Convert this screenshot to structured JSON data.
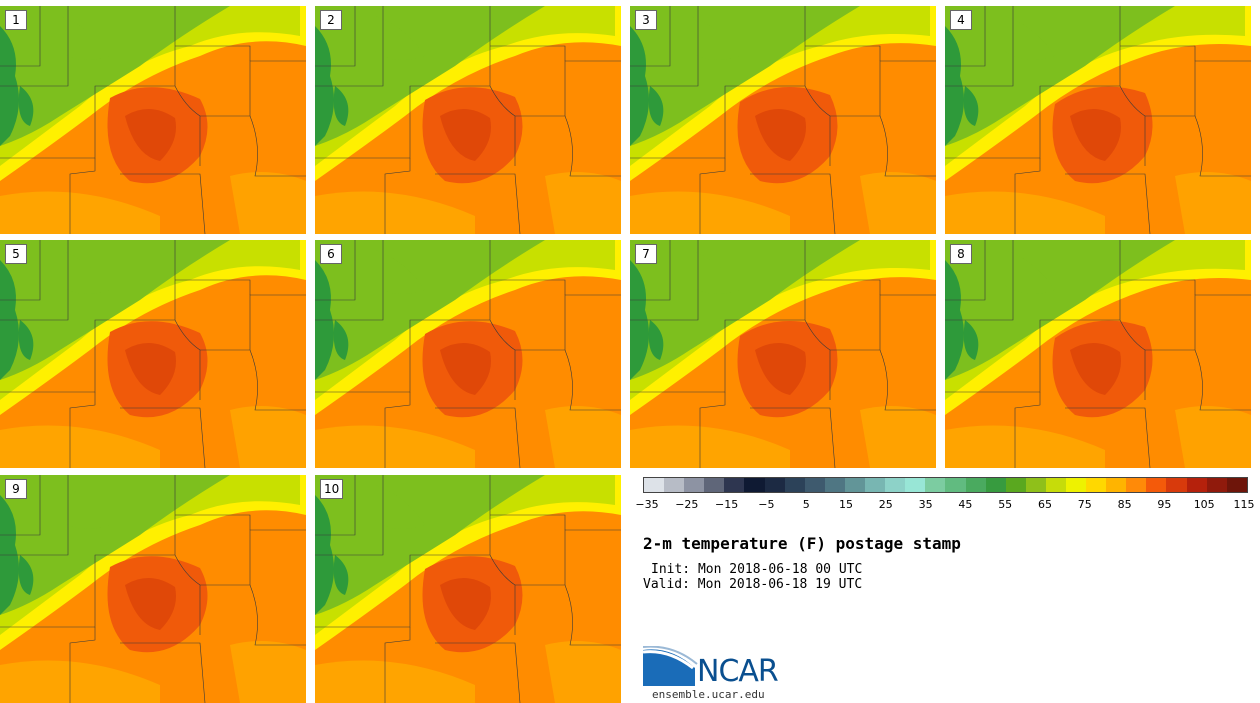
{
  "panels": [
    {
      "label": "1"
    },
    {
      "label": "2"
    },
    {
      "label": "3"
    },
    {
      "label": "4"
    },
    {
      "label": "5"
    },
    {
      "label": "6"
    },
    {
      "label": "7"
    },
    {
      "label": "8"
    },
    {
      "label": "9"
    },
    {
      "label": "10"
    }
  ],
  "colorbar": {
    "colors": [
      "#dde2e8",
      "#b7bcc6",
      "#8d93a3",
      "#5f6679",
      "#2e3650",
      "#0f1a33",
      "#1c2a43",
      "#2c4259",
      "#3e5a6e",
      "#4f7683",
      "#629598",
      "#78b6b2",
      "#8dd2c8",
      "#98e6d6",
      "#7ccca1",
      "#61bb80",
      "#4aaa5f",
      "#379b3f",
      "#5aa81f",
      "#8fc01a",
      "#c6dc0a",
      "#eef200",
      "#ffd800",
      "#ffb400",
      "#ff8a08",
      "#f45a0a",
      "#d83a0c",
      "#b5210c",
      "#901a0c",
      "#6e150a"
    ],
    "tick_labels": [
      "−35",
      "−25",
      "−15",
      "−5",
      "5",
      "15",
      "25",
      "35",
      "45",
      "55",
      "65",
      "75",
      "85",
      "95",
      "105",
      "115"
    ]
  },
  "title": "2-m temperature (F) postage stamp",
  "init": "Init: Mon 2018-06-18 00 UTC",
  "valid": "Valid: Mon 2018-06-18 19 UTC",
  "logo": {
    "text": "NCAR",
    "url": "ensemble.ucar.edu",
    "color": "#0a4f8f"
  },
  "map_colors": {
    "green_dark": "#2e9a3a",
    "green": "#7dbf1e",
    "yellow_green": "#c8e000",
    "yellow": "#fff000",
    "orange_light": "#ffb800",
    "orange": "#ff8c00",
    "orange_dark": "#f05a0a",
    "red_orange": "#e04808"
  }
}
